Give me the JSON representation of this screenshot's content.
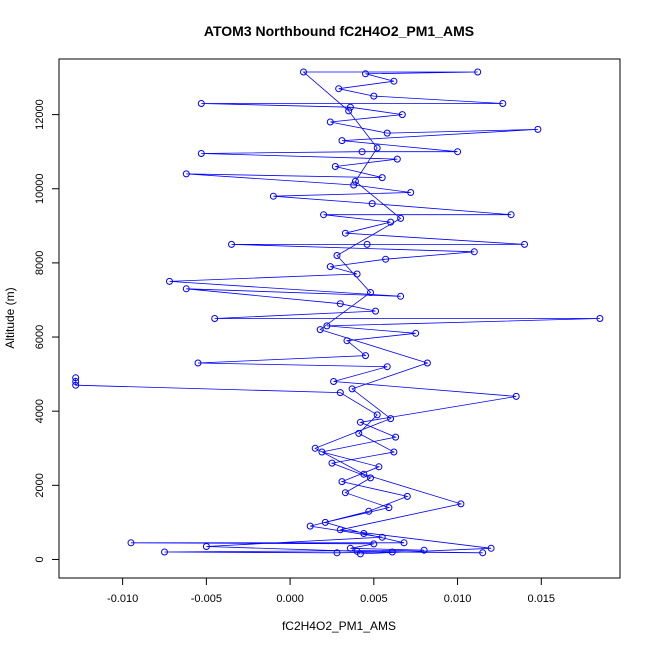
{
  "chart_data": {
    "type": "scatter",
    "title": "ATOM3 Northbound fC2H4O2_PM1_AMS",
    "xlabel": "fC2H4O2_PM1_AMS",
    "ylabel": "Altitude (m)",
    "xlim": [
      -0.0138,
      0.0197
    ],
    "ylim": [
      -500,
      13500
    ],
    "xticks": [
      -0.01,
      -0.005,
      0.0,
      0.005,
      0.01,
      0.015
    ],
    "xtick_labels": [
      "-0.010",
      "-0.005",
      "0.000",
      "0.005",
      "0.010",
      "0.015"
    ],
    "yticks": [
      0,
      2000,
      4000,
      6000,
      8000,
      10000,
      12000
    ],
    "ytick_labels": [
      "0",
      "2000",
      "4000",
      "6000",
      "8000",
      "10000",
      "12000"
    ],
    "grid": false,
    "legend": "none",
    "series": [
      {
        "color": "#0000ff",
        "marker": "open-circle",
        "line": true,
        "points": [
          [
            -0.0128,
            4900
          ],
          [
            -0.0128,
            4800
          ],
          [
            -0.0128,
            4700
          ],
          [
            0.003,
            4500
          ],
          [
            0.0052,
            3900
          ],
          [
            0.0041,
            3400
          ],
          [
            0.0062,
            2900
          ],
          [
            0.0025,
            2600
          ],
          [
            0.0048,
            2200
          ],
          [
            0.0033,
            1800
          ],
          [
            0.0059,
            1400
          ],
          [
            0.0021,
            1000
          ],
          [
            0.0044,
            700
          ],
          [
            0.0068,
            450
          ],
          [
            -0.0095,
            450
          ],
          [
            0.005,
            420
          ],
          [
            0.0036,
            300
          ],
          [
            0.008,
            250
          ],
          [
            -0.0075,
            200
          ],
          [
            0.0028,
            180
          ],
          [
            0.0061,
            200
          ],
          [
            0.0115,
            180
          ],
          [
            0.004,
            220
          ],
          [
            -0.005,
            350
          ],
          [
            0.0055,
            600
          ],
          [
            0.0012,
            900
          ],
          [
            0.0047,
            1300
          ],
          [
            0.007,
            1700
          ],
          [
            0.0031,
            2100
          ],
          [
            0.0053,
            2500
          ],
          [
            0.0019,
            2900
          ],
          [
            0.0063,
            3300
          ],
          [
            0.0042,
            3700
          ],
          [
            0.0135,
            4400
          ],
          [
            0.0026,
            4800
          ],
          [
            0.0058,
            5200
          ],
          [
            -0.0055,
            5300
          ],
          [
            0.0045,
            5500
          ],
          [
            0.0034,
            5900
          ],
          [
            0.0075,
            6100
          ],
          [
            0.0022,
            6300
          ],
          [
            0.0185,
            6500
          ],
          [
            -0.0045,
            6500
          ],
          [
            0.0051,
            6700
          ],
          [
            0.003,
            6900
          ],
          [
            -0.0062,
            7300
          ],
          [
            0.0066,
            7100
          ],
          [
            -0.0072,
            7500
          ],
          [
            0.004,
            7700
          ],
          [
            0.0024,
            7900
          ],
          [
            0.0057,
            8100
          ],
          [
            0.011,
            8300
          ],
          [
            -0.0035,
            8500
          ],
          [
            0.0046,
            8500
          ],
          [
            0.014,
            8500
          ],
          [
            0.0033,
            8800
          ],
          [
            0.006,
            9100
          ],
          [
            0.002,
            9300
          ],
          [
            0.0132,
            9300
          ],
          [
            0.0049,
            9600
          ],
          [
            -0.001,
            9800
          ],
          [
            0.0072,
            9900
          ],
          [
            0.0038,
            10100
          ],
          [
            -0.0062,
            10400
          ],
          [
            0.0055,
            10300
          ],
          [
            0.0027,
            10600
          ],
          [
            0.0064,
            10800
          ],
          [
            -0.0053,
            10950
          ],
          [
            0.0043,
            11000
          ],
          [
            0.01,
            11000
          ],
          [
            0.0031,
            11300
          ],
          [
            0.0148,
            11600
          ],
          [
            0.0058,
            11500
          ],
          [
            0.0024,
            11800
          ],
          [
            0.0067,
            12000
          ],
          [
            0.0036,
            12200
          ],
          [
            -0.0053,
            12300
          ],
          [
            0.0127,
            12300
          ],
          [
            0.005,
            12500
          ],
          [
            0.0029,
            12700
          ],
          [
            0.0062,
            12900
          ],
          [
            0.0045,
            13100
          ],
          [
            0.0112,
            13150
          ],
          [
            0.0008,
            13150
          ],
          [
            0.0035,
            12100
          ],
          [
            0.0052,
            11100
          ],
          [
            0.0039,
            10200
          ],
          [
            0.0066,
            9200
          ],
          [
            0.0028,
            8200
          ],
          [
            0.0048,
            7200
          ],
          [
            0.0018,
            6200
          ],
          [
            0.0082,
            5300
          ],
          [
            0.0037,
            4600
          ],
          [
            0.006,
            3800
          ],
          [
            0.0015,
            3000
          ],
          [
            0.0044,
            2300
          ],
          [
            0.0102,
            1500
          ],
          [
            0.003,
            800
          ],
          [
            0.012,
            300
          ],
          [
            0.0042,
            150
          ]
        ]
      }
    ]
  }
}
